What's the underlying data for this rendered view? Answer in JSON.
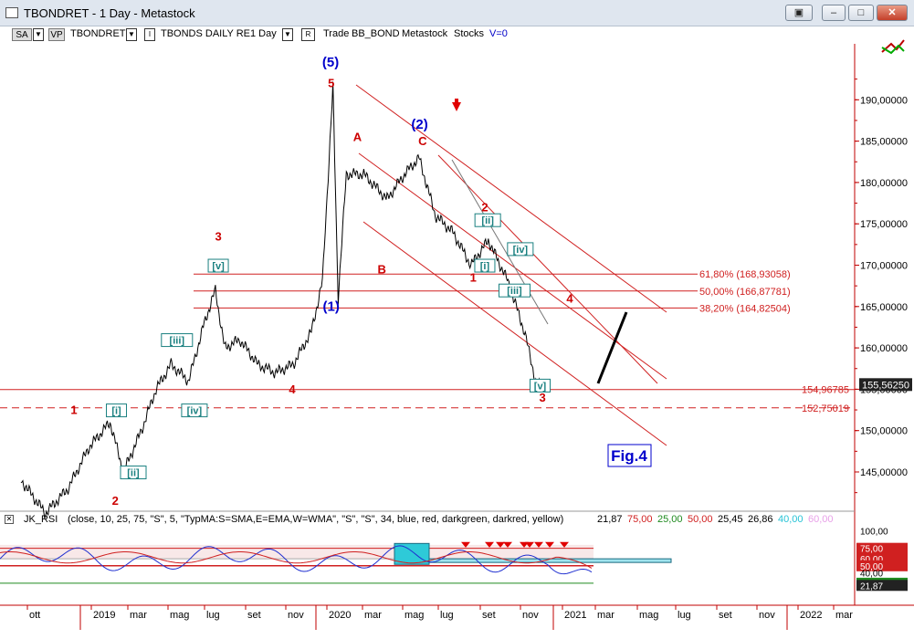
{
  "window": {
    "title": "TBONDRET - 1 Day - Metastock",
    "controls": [
      "restore-toolbar",
      "minimize",
      "maximize",
      "close"
    ]
  },
  "toolbar": {
    "btn_sa": "SA",
    "btn_vp": "VP",
    "symbol": "TBONDRET",
    "security_name": "TBONDS DAILY RE",
    "period": "1 Day",
    "trade_label": "Trade",
    "trade_name": "BB_BOND",
    "source": "Metastock",
    "market": "Stocks",
    "volume": "V=0"
  },
  "chart_data": {
    "type": "line",
    "title": "",
    "xlabel": "",
    "ylabel": "",
    "x": [
      "2018-09-20",
      "2018-11-01",
      "2018-12-10",
      "2019-01-15",
      "2019-02-20",
      "2019-03-15",
      "2019-04-15",
      "2019-05-10",
      "2019-06-05",
      "2019-07-05",
      "2019-08-01",
      "2019-08-20",
      "2019-09-05",
      "2019-10-01",
      "2019-11-01",
      "2019-12-01",
      "2020-01-01",
      "2020-02-01",
      "2020-02-20",
      "2020-03-04",
      "2020-03-09",
      "2020-03-18",
      "2020-04-01",
      "2020-05-01",
      "2020-06-10",
      "2020-07-10",
      "2020-08-04",
      "2020-09-01",
      "2020-10-01",
      "2020-11-01",
      "2020-12-01",
      "2021-01-04",
      "2021-02-01",
      "2021-02-22",
      "2021-03-03"
    ],
    "values": [
      144,
      140,
      143,
      148,
      151,
      145,
      150,
      155,
      158,
      156,
      163,
      167,
      160,
      161,
      158,
      157,
      158,
      162,
      168,
      185,
      191.5,
      166,
      181,
      181,
      178,
      181,
      183,
      176,
      174,
      170,
      173,
      168,
      162,
      155.5,
      155.6
    ],
    "ylim": [
      140,
      194
    ],
    "y_ticks": [
      "145,00000",
      "150,00000",
      "155,00000",
      "160,00000",
      "165,00000",
      "170,00000",
      "175,00000",
      "180,00000",
      "185,00000",
      "190,00000"
    ],
    "x_tick_labels": [
      "ott",
      "2019",
      "mar",
      "mag",
      "lug",
      "set",
      "nov",
      "2020",
      "mar",
      "mag",
      "lug",
      "set",
      "nov",
      "2021",
      "mar",
      "mag",
      "lug",
      "set",
      "nov",
      "2022",
      "mar"
    ],
    "last_price_label": "155,56250",
    "horizontal_levels": [
      {
        "value": 168.93058,
        "label": "61,80% (168,93058)",
        "style": "solid"
      },
      {
        "value": 166.87781,
        "label": "50,00% (166,87781)",
        "style": "solid"
      },
      {
        "value": 164.82504,
        "label": "38,20% (164,82504)",
        "style": "solid"
      },
      {
        "value": 154.96785,
        "label": "154,96785",
        "style": "solid"
      },
      {
        "value": 152.75019,
        "label": "152,75019",
        "style": "dashed"
      }
    ],
    "wave_labels": [
      {
        "text": "1",
        "x": "2018-12-20",
        "y": 152,
        "color": "red"
      },
      {
        "text": "2",
        "x": "2019-03-01",
        "y": 141,
        "color": "red"
      },
      {
        "text": "[i]",
        "x": "2019-03-03",
        "y": 152,
        "color": "teal-box"
      },
      {
        "text": "[ii]",
        "x": "2019-04-01",
        "y": 144.5,
        "color": "teal-box"
      },
      {
        "text": "[iii]",
        "x": "2019-06-15",
        "y": 160.5,
        "color": "teal-box"
      },
      {
        "text": "[iv]",
        "x": "2019-07-15",
        "y": 152,
        "color": "teal-box"
      },
      {
        "text": "[v]",
        "x": "2019-08-25",
        "y": 169.5,
        "color": "teal-box"
      },
      {
        "text": "3",
        "x": "2019-08-25",
        "y": 173,
        "color": "red"
      },
      {
        "text": "4",
        "x": "2019-12-30",
        "y": 154.5,
        "color": "red"
      },
      {
        "text": "(1)",
        "x": "2020-03-06",
        "y": 164.5,
        "color": "blue"
      },
      {
        "text": "5",
        "x": "2020-03-06",
        "y": 191.5,
        "color": "red"
      },
      {
        "text": "(5)",
        "x": "2020-03-05",
        "y": 194,
        "color": "blue"
      },
      {
        "text": "A",
        "x": "2020-04-20",
        "y": 185,
        "color": "red"
      },
      {
        "text": "B",
        "x": "2020-06-01",
        "y": 169,
        "color": "red"
      },
      {
        "text": "C",
        "x": "2020-08-10",
        "y": 184.5,
        "color": "red"
      },
      {
        "text": "(2)",
        "x": "2020-08-05",
        "y": 186.5,
        "color": "blue"
      },
      {
        "text": "1",
        "x": "2020-11-05",
        "y": 168,
        "color": "red"
      },
      {
        "text": "2",
        "x": "2020-11-25",
        "y": 176.5,
        "color": "red"
      },
      {
        "text": "[i]",
        "x": "2020-11-25",
        "y": 169.5,
        "color": "teal-box"
      },
      {
        "text": "[ii]",
        "x": "2020-11-30",
        "y": 175,
        "color": "teal-box"
      },
      {
        "text": "[iii]",
        "x": "2021-01-15",
        "y": 166.5,
        "color": "teal-box"
      },
      {
        "text": "[iv]",
        "x": "2021-01-25",
        "y": 171.5,
        "color": "teal-box"
      },
      {
        "text": "[v]",
        "x": "2021-02-28",
        "y": 155,
        "color": "teal-box"
      },
      {
        "text": "3",
        "x": "2021-03-04",
        "y": 153.5,
        "color": "red"
      },
      {
        "text": "4",
        "x": "2021-04-20",
        "y": 165.5,
        "color": "red"
      }
    ],
    "fig_label": "Fig.4"
  },
  "rsi_panel": {
    "header": {
      "name": "JK_RSI",
      "params": "(close,  10,  25,  75,  \"S\",  5,  \"TypMA:S=SMA,E=EMA,W=WMA\",  \"S\",  \"S\",  34,  blue,  red,  darkgreen,  darkred,  yellow)",
      "v1": "21,87",
      "v2": "75,00",
      "v3": "25,00",
      "v4": "50,00",
      "v5": "25,45",
      "v6": "26,86",
      "v7": "40,00",
      "v8": "60,00"
    },
    "axis_labels": [
      "100,00",
      "75,00",
      "60,00",
      "50,00",
      "40,00",
      "25,00",
      "21,87"
    ]
  },
  "colors": {
    "price": "#000000",
    "wave_red": "#cc0000",
    "wave_blue": "#0000cc",
    "teal": "#1a8080",
    "channel": "#d02020",
    "fib": "#d02020",
    "rsi_blue": "#1f2fd0",
    "rsi_red": "#d02020",
    "rsi_green": "#1f8a1f",
    "rsi_box": "#2ecad8"
  }
}
